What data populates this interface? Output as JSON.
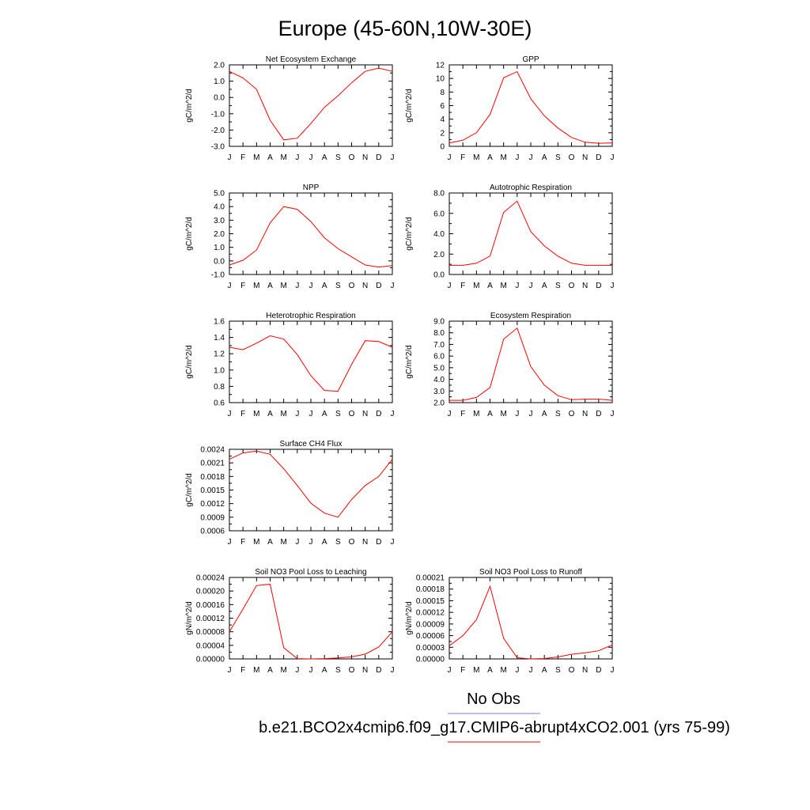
{
  "page_title": "Europe (45-60N,10W-30E)",
  "legend": {
    "obs_label": "No Obs",
    "obs_color": "#7777ee",
    "model_label": "b.e21.BCO2x4cmip6.f09_g17.CMIP6-abrupt4xCO2.001 (yrs 75-99)",
    "model_color": "#ff0000"
  },
  "line_color": "#ff0000",
  "chart_data": [
    {
      "type": "line",
      "title": "Net Ecosystem Exchange",
      "ylabel": "gC/m^2/d",
      "x": [
        "J",
        "F",
        "M",
        "A",
        "M",
        "J",
        "J",
        "A",
        "S",
        "O",
        "N",
        "D",
        "J"
      ],
      "ylim": [
        -3.0,
        2.0
      ],
      "yticks": [
        "2.0",
        "1.0",
        "0.0",
        "-1.0",
        "-2.0",
        "-3.0"
      ],
      "series": [
        {
          "values": [
            1.6,
            1.2,
            0.5,
            -1.4,
            -2.6,
            -2.5,
            -1.6,
            -0.6,
            0.1,
            0.9,
            1.6,
            1.8,
            1.6
          ]
        }
      ]
    },
    {
      "type": "line",
      "title": "GPP",
      "ylabel": "gC/m^2/d",
      "x": [
        "J",
        "F",
        "M",
        "A",
        "M",
        "J",
        "J",
        "A",
        "S",
        "O",
        "N",
        "D",
        "J"
      ],
      "ylim": [
        0,
        12
      ],
      "yticks": [
        "12",
        "10",
        "8",
        "6",
        "4",
        "2",
        "0"
      ],
      "series": [
        {
          "values": [
            0.5,
            0.9,
            2.0,
            4.7,
            10.1,
            11.0,
            7.0,
            4.5,
            2.7,
            1.3,
            0.6,
            0.45,
            0.5
          ]
        }
      ]
    },
    {
      "type": "line",
      "title": "NPP",
      "ylabel": "gC/m^2/d",
      "x": [
        "J",
        "F",
        "M",
        "A",
        "M",
        "J",
        "J",
        "A",
        "S",
        "O",
        "N",
        "D",
        "J"
      ],
      "ylim": [
        -1.0,
        5.0
      ],
      "yticks": [
        "5.0",
        "4.0",
        "3.0",
        "2.0",
        "1.0",
        "0.0",
        "-1.0"
      ],
      "series": [
        {
          "values": [
            -0.3,
            0.05,
            0.8,
            2.8,
            4.0,
            3.8,
            2.9,
            1.7,
            0.9,
            0.3,
            -0.3,
            -0.45,
            -0.35
          ]
        }
      ]
    },
    {
      "type": "line",
      "title": "Autotrophic Respiration",
      "ylabel": "gC/m^2/d",
      "x": [
        "J",
        "F",
        "M",
        "A",
        "M",
        "J",
        "J",
        "A",
        "S",
        "O",
        "N",
        "D",
        "J"
      ],
      "ylim": [
        0,
        8.0
      ],
      "yticks": [
        "8.0",
        "6.0",
        "4.0",
        "2.0",
        "0.0"
      ],
      "series": [
        {
          "values": [
            0.9,
            0.9,
            1.1,
            1.8,
            6.1,
            7.2,
            4.2,
            2.8,
            1.8,
            1.1,
            0.9,
            0.9,
            0.9
          ]
        }
      ]
    },
    {
      "type": "line",
      "title": "Heterotrophic Respiration",
      "ylabel": "gC/m^2/d",
      "x": [
        "J",
        "F",
        "M",
        "A",
        "M",
        "J",
        "J",
        "A",
        "S",
        "O",
        "N",
        "D",
        "J"
      ],
      "ylim": [
        0.6,
        1.6
      ],
      "yticks": [
        "1.6",
        "1.4",
        "1.2",
        "1.0",
        "0.8",
        "0.6"
      ],
      "series": [
        {
          "values": [
            1.28,
            1.25,
            1.33,
            1.42,
            1.38,
            1.19,
            0.93,
            0.75,
            0.74,
            1.07,
            1.36,
            1.35,
            1.28
          ]
        }
      ]
    },
    {
      "type": "line",
      "title": "Ecosystem Respiration",
      "ylabel": "gC/m^2/d",
      "x": [
        "J",
        "F",
        "M",
        "A",
        "M",
        "J",
        "J",
        "A",
        "S",
        "O",
        "N",
        "D",
        "J"
      ],
      "ylim": [
        2.0,
        9.0
      ],
      "yticks": [
        "9.0",
        "8.0",
        "7.0",
        "6.0",
        "5.0",
        "4.0",
        "3.0",
        "2.0"
      ],
      "series": [
        {
          "values": [
            2.2,
            2.2,
            2.45,
            3.3,
            7.45,
            8.4,
            5.1,
            3.5,
            2.6,
            2.25,
            2.3,
            2.3,
            2.2
          ]
        }
      ]
    },
    {
      "type": "line",
      "title": "Surface CH4 Flux",
      "ylabel": "gC/m^2/d",
      "x": [
        "J",
        "F",
        "M",
        "A",
        "M",
        "J",
        "J",
        "A",
        "S",
        "O",
        "N",
        "D",
        "J"
      ],
      "ylim": [
        0.0006,
        0.0024
      ],
      "yticks": [
        "0.0024",
        "0.0021",
        "0.0018",
        "0.0015",
        "0.0012",
        "0.0009",
        "0.0006"
      ],
      "series": [
        {
          "values": [
            0.00218,
            0.00232,
            0.00236,
            0.00229,
            0.00197,
            0.0016,
            0.00121,
            0.00099,
            0.0009,
            0.00129,
            0.0016,
            0.0018,
            0.00218
          ]
        }
      ]
    },
    {
      "type": "line",
      "title": "Soil NO3 Pool Loss to Leaching",
      "ylabel": "gN/m^2/d",
      "x": [
        "J",
        "F",
        "M",
        "A",
        "M",
        "J",
        "J",
        "A",
        "S",
        "O",
        "N",
        "D",
        "J"
      ],
      "ylim": [
        0,
        0.00024
      ],
      "yticks": [
        "0.00024",
        "0.00020",
        "0.00016",
        "0.00012",
        "0.00008",
        "0.00004",
        "0.00000"
      ],
      "series": [
        {
          "values": [
            8e-05,
            0.000147,
            0.000216,
            0.00022,
            3.3e-05,
            1e-06,
            0.0,
            1e-06,
            3e-06,
            6e-06,
            1.4e-05,
            3.5e-05,
            8e-05
          ]
        }
      ]
    },
    {
      "type": "line",
      "title": "Soil NO3 Pool Loss to Runoff",
      "ylabel": "gN/m^2/d",
      "x": [
        "J",
        "F",
        "M",
        "A",
        "M",
        "J",
        "J",
        "A",
        "S",
        "O",
        "N",
        "D",
        "J"
      ],
      "ylim": [
        0,
        0.00021
      ],
      "yticks": [
        "0.00021",
        "0.00018",
        "0.00015",
        "0.00012",
        "0.00009",
        "0.00006",
        "0.00003",
        "0.00000"
      ],
      "series": [
        {
          "values": [
            3.4e-05,
            6e-05,
            0.000101,
            0.000187,
            5.3e-05,
            3e-06,
            0.0,
            1e-06,
            5e-06,
            1.2e-05,
            1.6e-05,
            2.1e-05,
            3.6e-05
          ]
        }
      ]
    }
  ]
}
